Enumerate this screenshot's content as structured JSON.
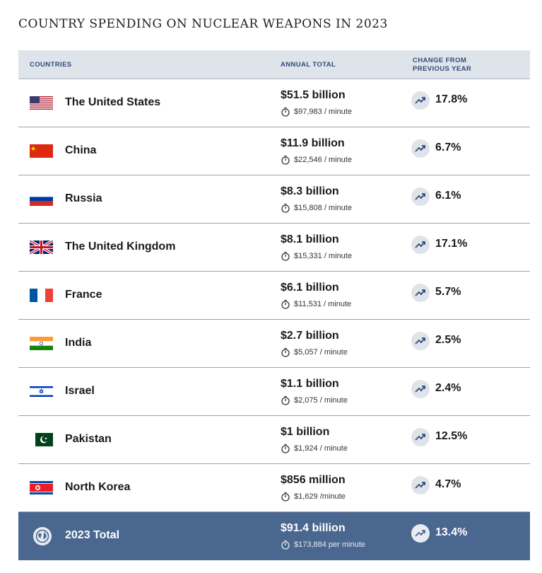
{
  "title": "COUNTRY SPENDING ON NUCLEAR WEAPONS IN 2023",
  "headers": {
    "countries": "COUNTRIES",
    "annual": "ANNUAL TOTAL",
    "change_line1": "CHANGE FROM",
    "change_line2": "PREVIOUS YEAR"
  },
  "rows": [
    {
      "flag": "us-flag-icon",
      "country": "The United States",
      "amount": "$51.5 billion",
      "per_minute": "$97,983 / minute",
      "change": "17.8%"
    },
    {
      "flag": "china-flag-icon",
      "country": "China",
      "amount": "$11.9 billion",
      "per_minute": "$22,546 / minute",
      "change": "6.7%"
    },
    {
      "flag": "russia-flag-icon",
      "country": "Russia",
      "amount": "$8.3 billion",
      "per_minute": "$15,808 / minute",
      "change": "6.1%"
    },
    {
      "flag": "uk-flag-icon",
      "country": "The United Kingdom",
      "amount": "$8.1 billion",
      "per_minute": "$15,331 / minute",
      "change": "17.1%"
    },
    {
      "flag": "france-flag-icon",
      "country": "France",
      "amount": "$6.1 billion",
      "per_minute": "$11,531 / minute",
      "change": "5.7%"
    },
    {
      "flag": "india-flag-icon",
      "country": "India",
      "amount": "$2.7 billion",
      "per_minute": "$5,057 / minute",
      "change": "2.5%"
    },
    {
      "flag": "israel-flag-icon",
      "country": "Israel",
      "amount": "$1.1 billion",
      "per_minute": "$2,075 / minute",
      "change": "2.4%"
    },
    {
      "flag": "pakistan-flag-icon",
      "country": "Pakistan",
      "amount": "$1 billion",
      "per_minute": "$1,924 / minute",
      "change": "12.5%"
    },
    {
      "flag": "north-korea-flag-icon",
      "country": "North Korea",
      "amount": "$856 million",
      "per_minute": "$1,629 /minute",
      "change": "4.7%"
    }
  ],
  "total": {
    "icon": "globe-icon",
    "label": "2023 Total",
    "amount": "$91.4 billion",
    "per_minute": "$173,884 per minute",
    "change": "13.4%"
  },
  "chart_data": {
    "type": "table",
    "title": "COUNTRY SPENDING ON NUCLEAR WEAPONS IN 2023",
    "columns": [
      "COUNTRIES",
      "ANNUAL TOTAL",
      "CHANGE FROM PREVIOUS YEAR"
    ],
    "rows": [
      [
        "The United States",
        "$51.5 billion",
        "$97,983 / minute",
        "17.8%"
      ],
      [
        "China",
        "$11.9 billion",
        "$22,546 / minute",
        "6.7%"
      ],
      [
        "Russia",
        "$8.3 billion",
        "$15,808 / minute",
        "6.1%"
      ],
      [
        "The United Kingdom",
        "$8.1 billion",
        "$15,331 / minute",
        "17.1%"
      ],
      [
        "France",
        "$6.1 billion",
        "$11,531 / minute",
        "5.7%"
      ],
      [
        "India",
        "$2.7 billion",
        "$5,057 / minute",
        "2.5%"
      ],
      [
        "Israel",
        "$1.1 billion",
        "$2,075 / minute",
        "2.4%"
      ],
      [
        "Pakistan",
        "$1 billion",
        "$1,924 / minute",
        "12.5%"
      ],
      [
        "North Korea",
        "$856 million",
        "$1,629 /minute",
        "4.7%"
      ],
      [
        "2023 Total",
        "$91.4 billion",
        "$173,884 per minute",
        "13.4%"
      ]
    ]
  },
  "colors": {
    "header_bg": "#dfe3ea",
    "header_text": "#2f4b7c",
    "total_bg": "#4a6790"
  }
}
